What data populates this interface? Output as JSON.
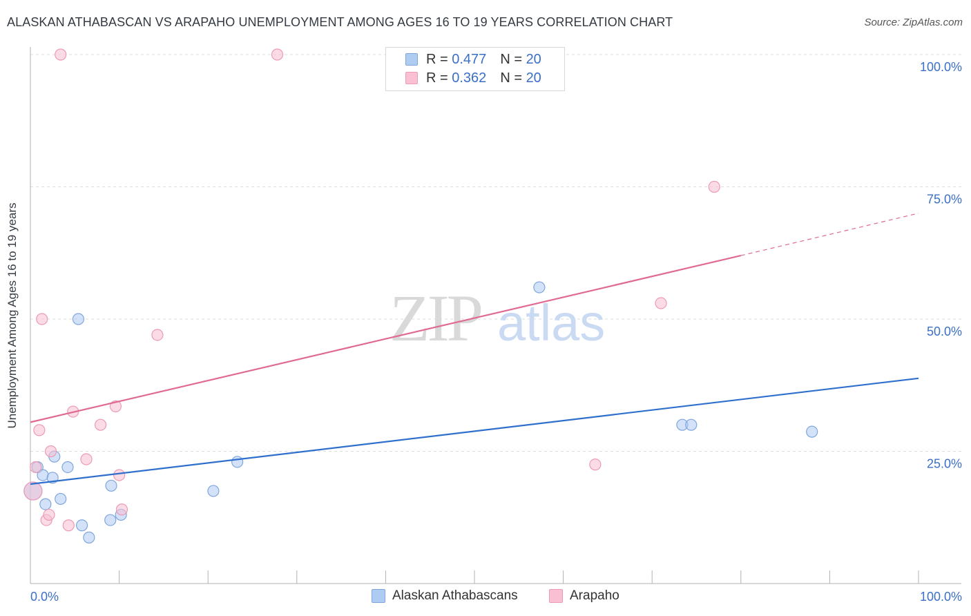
{
  "header": {
    "title": "ALASKAN ATHABASCAN VS ARAPAHO UNEMPLOYMENT AMONG AGES 16 TO 19 YEARS CORRELATION CHART",
    "source": "Source: ZipAtlas.com"
  },
  "watermark": {
    "zip": "ZIP",
    "atlas": "atlas"
  },
  "legend": {
    "series1": {
      "r_label": "R =",
      "r_value": "0.477",
      "n_label": "N =",
      "n_value": "20"
    },
    "series2": {
      "r_label": "R =",
      "r_value": "0.362",
      "n_label": "N =",
      "n_value": "20"
    }
  },
  "bottom_legend": {
    "series1": "Alaskan Athabascans",
    "series2": "Arapaho"
  },
  "colors": {
    "blue_fill": "#aecbf2",
    "blue_stroke": "#7fa6dc",
    "blue_line": "#2e6fce",
    "pink_fill": "#f8c0d2",
    "pink_stroke": "#ec9ab5",
    "pink_line": "#e06a93",
    "tick_label": "#3b6fc6",
    "grid": "#dddddd"
  },
  "chart_data": {
    "type": "scatter",
    "title": "ALASKAN ATHABASCAN VS ARAPAHO UNEMPLOYMENT AMONG AGES 16 TO 19 YEARS CORRELATION CHART",
    "xlabel": "",
    "ylabel": "Unemployment Among Ages 16 to 19 years",
    "xlim": [
      0,
      100
    ],
    "ylim": [
      0,
      100
    ],
    "x_tick_labels": [
      "0.0%",
      "100.0%"
    ],
    "y_ticks": [
      25,
      50,
      75,
      100
    ],
    "y_tick_labels": [
      "25.0%",
      "50.0%",
      "75.0%",
      "100.0%"
    ],
    "series": [
      {
        "name": "Alaskan Athabascans",
        "r": 0.477,
        "n": 20,
        "points": [
          [
            0.3,
            17.5
          ],
          [
            0.8,
            22
          ],
          [
            1.4,
            20.5
          ],
          [
            1.7,
            15
          ],
          [
            2.5,
            20
          ],
          [
            2.7,
            24
          ],
          [
            3.4,
            16
          ],
          [
            4.2,
            22
          ],
          [
            5.4,
            50
          ],
          [
            5.8,
            11
          ],
          [
            6.6,
            8.7
          ],
          [
            9.0,
            12
          ],
          [
            9.1,
            18.5
          ],
          [
            10.2,
            13
          ],
          [
            20.6,
            17.5
          ],
          [
            23.3,
            23
          ],
          [
            57.3,
            56
          ],
          [
            73.4,
            30
          ],
          [
            74.4,
            30
          ],
          [
            88.0,
            28.7
          ]
        ],
        "trend": {
          "x0": 0,
          "y0": 18.8,
          "x1": 100,
          "y1": 38.8
        }
      },
      {
        "name": "Arapaho",
        "r": 0.362,
        "n": 20,
        "points": [
          [
            0.3,
            17.5
          ],
          [
            0.6,
            22
          ],
          [
            1.0,
            29
          ],
          [
            1.3,
            50
          ],
          [
            1.8,
            12
          ],
          [
            2.1,
            13
          ],
          [
            2.3,
            25
          ],
          [
            3.4,
            100
          ],
          [
            4.3,
            11
          ],
          [
            4.8,
            32.5
          ],
          [
            6.3,
            23.5
          ],
          [
            7.9,
            30
          ],
          [
            9.6,
            33.5
          ],
          [
            10.0,
            20.5
          ],
          [
            10.3,
            14
          ],
          [
            14.3,
            47
          ],
          [
            27.8,
            100
          ],
          [
            63.6,
            22.5
          ],
          [
            71.0,
            53
          ],
          [
            77.0,
            75
          ]
        ],
        "trend": {
          "x0": 0,
          "y0": 30.5,
          "x1": 80,
          "y1": 62,
          "dash_x1": 100,
          "dash_y1": 70
        }
      }
    ]
  }
}
